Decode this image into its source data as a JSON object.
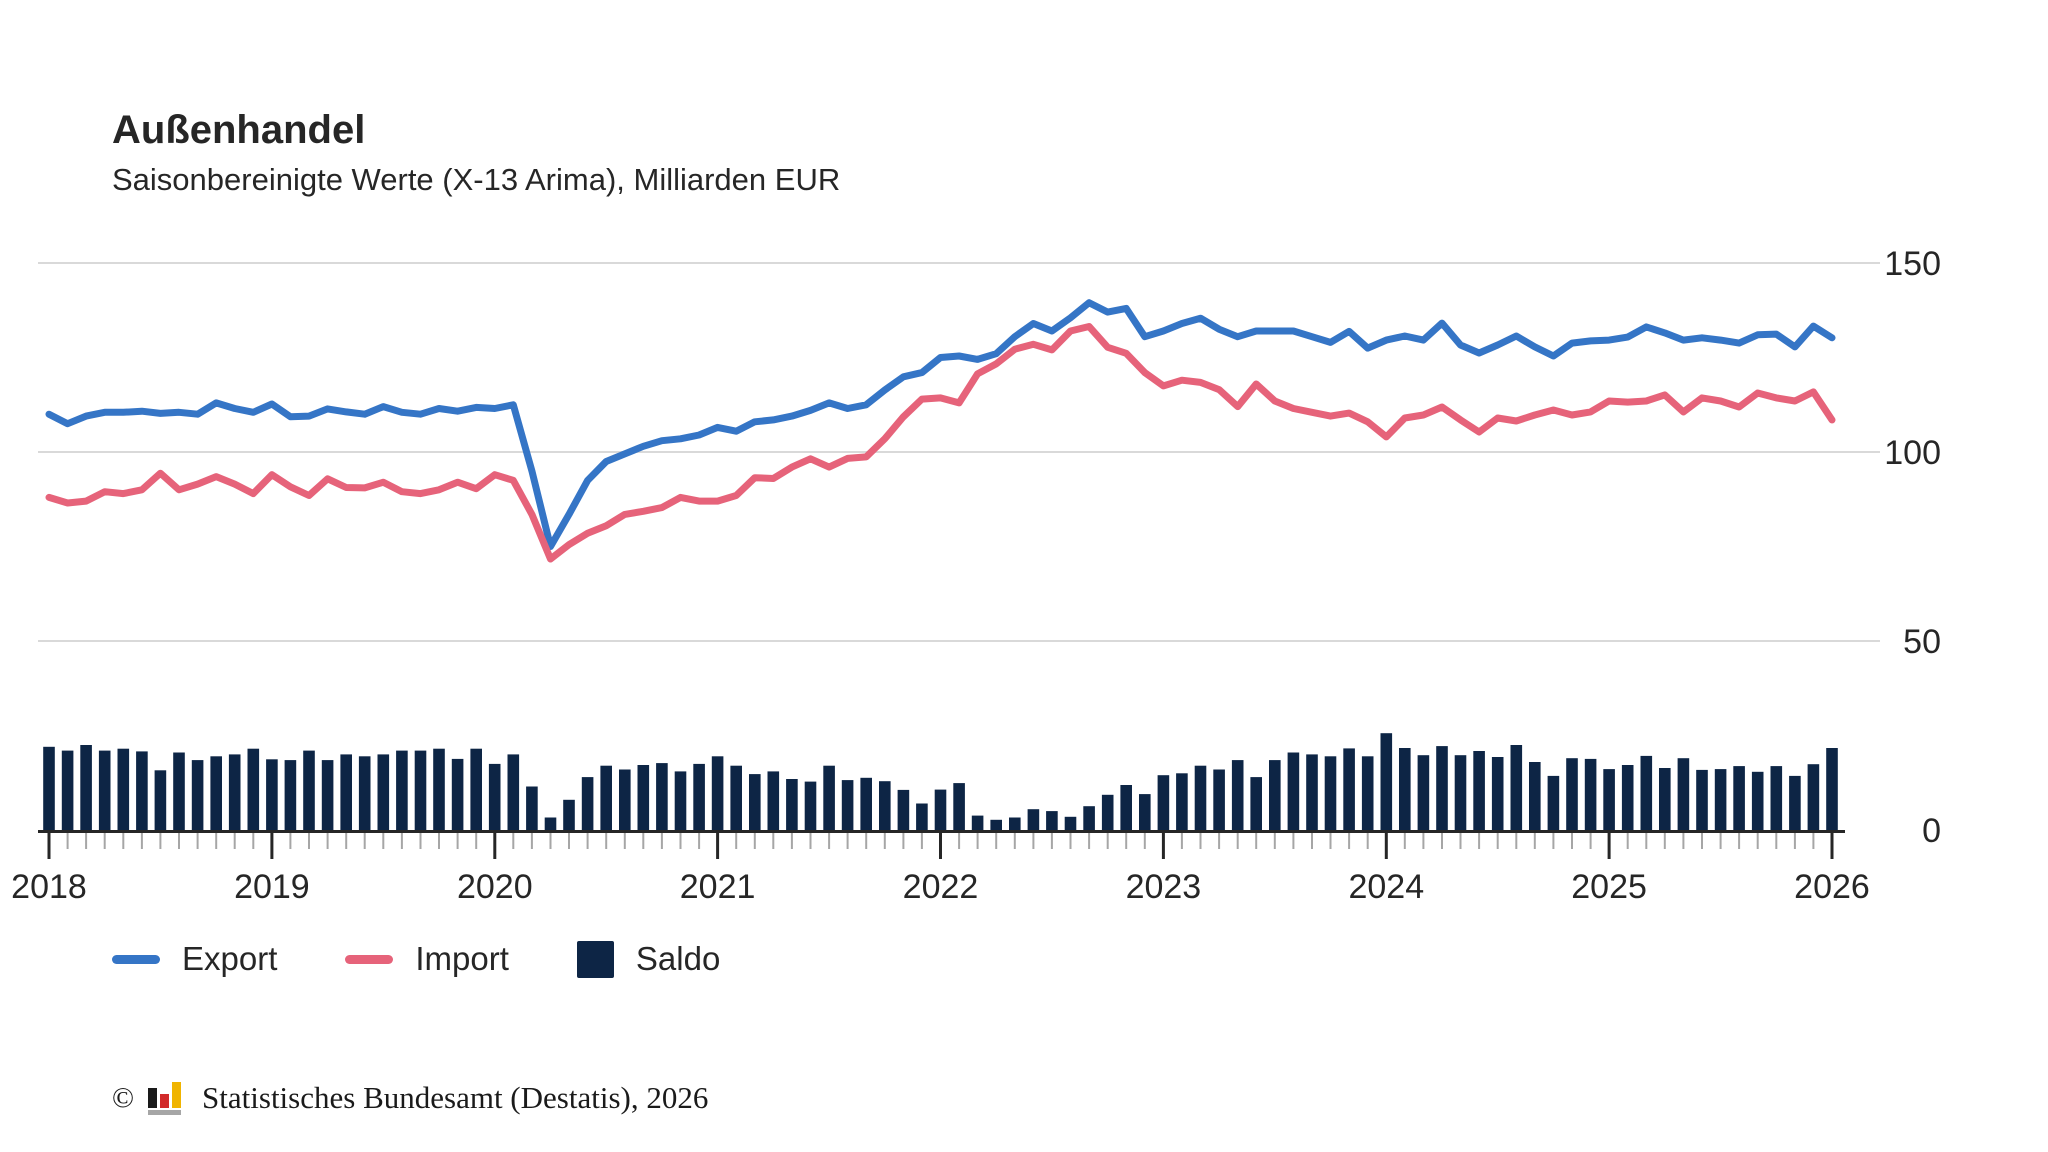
{
  "header": {
    "title": "Außenhandel",
    "subtitle": "Saisonbereinigte Werte (X-13 Arima), Milliarden EUR"
  },
  "legend": [
    {
      "label": "Export",
      "swatch": "line",
      "color": "#3575c6"
    },
    {
      "label": "Import",
      "swatch": "line",
      "color": "#e6637a"
    },
    {
      "label": "Saldo",
      "swatch": "square",
      "color": "#0d2545"
    }
  ],
  "footer": {
    "copyright": "©",
    "source": "Statistisches Bundesamt (Destatis), 2026",
    "logo_colors": {
      "bar1": "#1a1a1a",
      "bar2": "#d22a2a",
      "bar3": "#f0b400",
      "base": "#a6a6a6"
    }
  },
  "chart_data": {
    "type": "line+bar",
    "title": "Außenhandel",
    "subtitle": "Saisonbereinigte Werte (X-13 Arima), Milliarden EUR",
    "unit": "Milliarden EUR",
    "freq": "monthly",
    "x_start": "2018-01",
    "x_end": "2026-01",
    "x_tick_labels": [
      "2018",
      "2019",
      "2020",
      "2021",
      "2022",
      "2023",
      "2024",
      "2025",
      "2026"
    ],
    "y_ticks": [
      0,
      50,
      100,
      150
    ],
    "ylim": [
      0,
      160
    ],
    "grid": "horizontal",
    "y_axis_side": "right",
    "legend_position": "bottom-left",
    "colors": {
      "grid": "#d9d9d9",
      "axis": "#262626",
      "minor_tick": "#a6a6a6",
      "text": "#262626"
    },
    "series": [
      {
        "name": "Export",
        "type": "line",
        "color": "#3575c6",
        "values": [
          110.0,
          107.5,
          109.5,
          110.5,
          110.5,
          110.8,
          110.2,
          110.5,
          110.0,
          113.0,
          111.5,
          110.5,
          112.7,
          109.3,
          109.5,
          111.4,
          110.6,
          110.0,
          112.0,
          110.5,
          110.0,
          111.5,
          110.8,
          111.8,
          111.5,
          112.5,
          95.0,
          75.0,
          83.5,
          92.5,
          97.5,
          99.5,
          101.5,
          103.0,
          103.5,
          104.5,
          106.5,
          105.5,
          108.0,
          108.5,
          109.5,
          111.0,
          113.0,
          111.5,
          112.5,
          116.4,
          119.9,
          121.0,
          125.0,
          125.4,
          124.5,
          126.0,
          130.5,
          134.0,
          132.0,
          135.5,
          139.5,
          137.0,
          138.0,
          130.5,
          132.0,
          134.0,
          135.4,
          132.5,
          130.5,
          132.0,
          132.0,
          132.0,
          130.5,
          129.0,
          131.9,
          127.5,
          129.6,
          130.7,
          129.6,
          134.1,
          128.3,
          126.2,
          128.3,
          130.7,
          127.8,
          125.4,
          128.8,
          129.4,
          129.6,
          130.4,
          133.1,
          131.5,
          129.6,
          130.2,
          129.6,
          128.8,
          131.0,
          131.2,
          127.8,
          133.3,
          130.2
        ]
      },
      {
        "name": "Import",
        "type": "line",
        "color": "#e6637a",
        "values": [
          88.0,
          86.5,
          87.0,
          89.5,
          89.0,
          90.0,
          94.4,
          90.0,
          91.5,
          93.5,
          91.5,
          89.0,
          94.0,
          90.8,
          88.5,
          92.9,
          90.6,
          90.5,
          92.0,
          89.5,
          89.0,
          90.0,
          92.0,
          90.3,
          94.0,
          92.5,
          83.5,
          71.7,
          75.5,
          78.5,
          80.5,
          83.5,
          84.3,
          85.3,
          88.0,
          87.0,
          87.0,
          88.5,
          93.2,
          93.0,
          96.0,
          98.2,
          96.0,
          98.3,
          98.7,
          103.5,
          109.3,
          114.0,
          114.3,
          113.0,
          120.7,
          123.3,
          127.2,
          128.5,
          127.0,
          132.0,
          133.2,
          127.7,
          126.1,
          121.0,
          117.5,
          119.0,
          118.4,
          116.5,
          112.0,
          118.0,
          113.5,
          111.5,
          110.5,
          109.5,
          110.3,
          108.0,
          104.0,
          109.0,
          109.8,
          111.9,
          108.5,
          105.3,
          109.0,
          108.2,
          109.8,
          111.1,
          109.8,
          110.6,
          113.5,
          113.2,
          113.5,
          115.1,
          110.6,
          114.3,
          113.5,
          111.9,
          115.6,
          114.3,
          113.5,
          115.9,
          108.5
        ]
      },
      {
        "name": "Saldo",
        "type": "bar",
        "color": "#0d2545",
        "values": [
          22.0,
          21.0,
          22.5,
          21.0,
          21.5,
          20.8,
          15.8,
          20.5,
          18.5,
          19.5,
          20.0,
          21.5,
          18.7,
          18.5,
          21.0,
          18.5,
          20.0,
          19.5,
          20.0,
          21.0,
          21.0,
          21.5,
          18.8,
          21.5,
          17.5,
          20.0,
          11.5,
          3.3,
          8.0,
          14.0,
          17.0,
          16.0,
          17.2,
          17.7,
          15.5,
          17.5,
          19.5,
          17.0,
          14.8,
          15.5,
          13.5,
          12.8,
          17.0,
          13.2,
          13.8,
          12.9,
          10.6,
          7.0,
          10.7,
          12.4,
          3.8,
          2.7,
          3.3,
          5.5,
          5.0,
          3.5,
          6.3,
          9.3,
          11.9,
          9.5,
          14.5,
          15.0,
          17.0,
          16.0,
          18.5,
          14.0,
          18.5,
          20.5,
          20.0,
          19.5,
          21.6,
          19.5,
          25.6,
          21.7,
          19.8,
          22.2,
          19.8,
          20.9,
          19.3,
          22.5,
          18.0,
          14.3,
          19.0,
          18.8,
          16.1,
          17.2,
          19.6,
          16.4,
          19.0,
          15.9,
          16.1,
          16.9,
          15.4,
          16.9,
          14.3,
          17.4,
          21.7
        ]
      }
    ]
  }
}
